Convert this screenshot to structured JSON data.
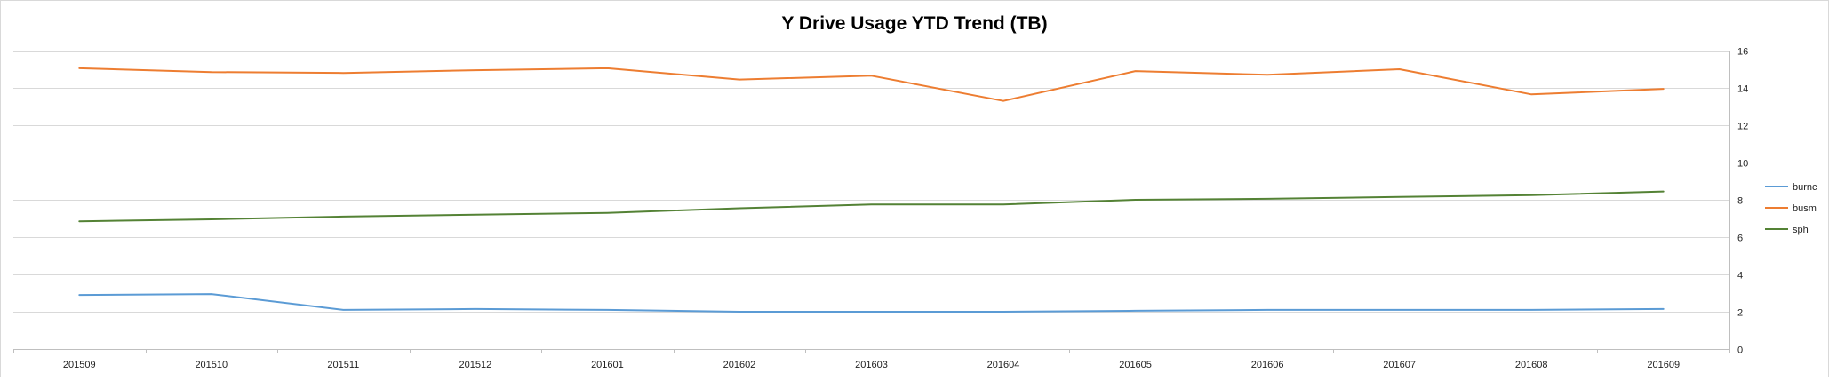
{
  "chart_data": {
    "type": "line",
    "title": "Y Drive Usage YTD Trend (TB)",
    "xlabel": "",
    "ylabel": "",
    "categories": [
      "201509",
      "201510",
      "201511",
      "201512",
      "201601",
      "201602",
      "201603",
      "201604",
      "201605",
      "201606",
      "201607",
      "201608",
      "201609"
    ],
    "ylim": [
      0,
      16
    ],
    "yticks": [
      0,
      2,
      4,
      6,
      8,
      10,
      12,
      14,
      16
    ],
    "y_axis_position": "right",
    "grid": true,
    "legend_position": "right",
    "series": [
      {
        "name": "burnc",
        "color": "#5b9bd5",
        "values": [
          2.9,
          2.95,
          2.1,
          2.15,
          2.1,
          2.0,
          2.0,
          2.0,
          2.05,
          2.1,
          2.1,
          2.1,
          2.15
        ]
      },
      {
        "name": "busm",
        "color": "#ed7d31",
        "values": [
          15.05,
          14.85,
          14.8,
          14.95,
          15.05,
          14.45,
          14.65,
          13.3,
          14.9,
          14.7,
          15.0,
          13.65,
          13.95
        ]
      },
      {
        "name": "sph",
        "color": "#548235",
        "values": [
          6.85,
          6.95,
          7.1,
          7.2,
          7.3,
          7.55,
          7.75,
          7.75,
          8.0,
          8.05,
          8.15,
          8.25,
          8.45
        ]
      }
    ]
  }
}
